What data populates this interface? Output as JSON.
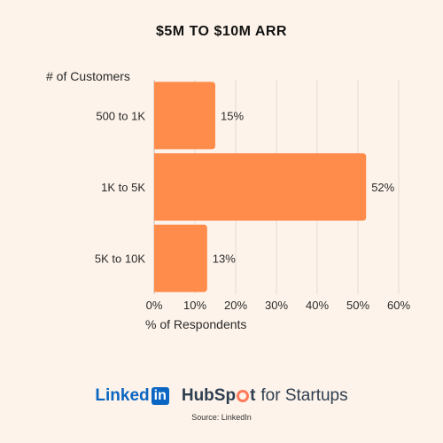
{
  "chart_data": {
    "type": "bar",
    "orientation": "horizontal",
    "title": "$5M TO $10M ARR",
    "ylabel": "# of Customers",
    "xlabel": "% of Respondents",
    "categories": [
      "500 to 1K",
      "1K to 5K",
      "5K to 10K"
    ],
    "values": [
      15,
      52,
      13
    ],
    "value_labels": [
      "15%",
      "52%",
      "13%"
    ],
    "xlim": [
      0,
      60
    ],
    "x_ticks": [
      "0%",
      "10%",
      "20%",
      "30%",
      "40%",
      "50%",
      "60%"
    ],
    "grid": true,
    "bar_color": "#ff8c4a"
  },
  "logos": {
    "linkedin_prefix": "Linked",
    "linkedin_box": "in",
    "hubspot_left": "HubSp",
    "hubspot_right": "t",
    "hubspot_rest": "for Startups"
  },
  "source": "Source: LinkedIn"
}
